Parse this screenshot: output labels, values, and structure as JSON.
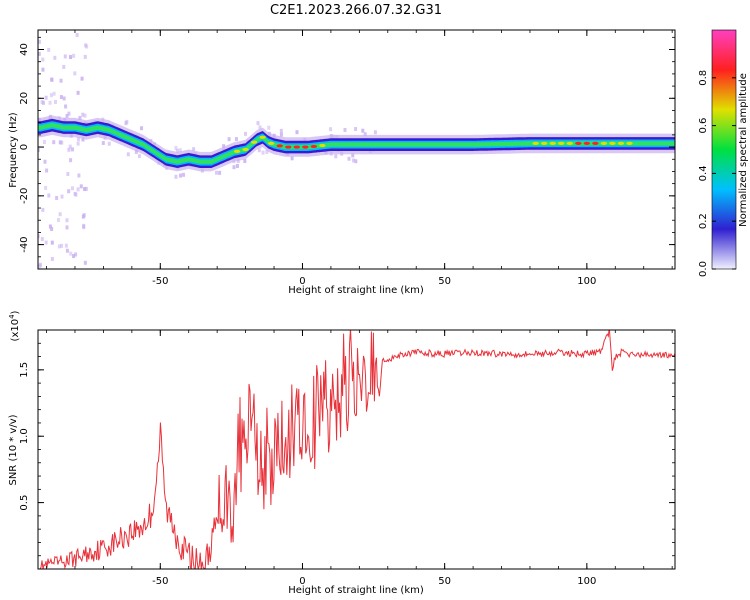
{
  "title": "C2E1.2023.266.07.32.G31",
  "colors": {
    "snr_line": "#e8323a",
    "track_core": "#e00020",
    "track_mid": "#30e060",
    "track_edge": "#3a1bd0",
    "track_halo": "#c9b0f0",
    "axis": "#000000",
    "background": "#ffffff"
  },
  "chart_data": [
    {
      "type": "heatmap",
      "xlabel": "Height of straight line (km)",
      "ylabel": "Frequency (Hz)",
      "xlim": [
        -93,
        131
      ],
      "ylim": [
        -50,
        48
      ],
      "x_ticks": [
        -50,
        0,
        50,
        100
      ],
      "y_ticks": [
        -40,
        -20,
        0,
        20,
        40
      ],
      "colorbar": {
        "label": "Normalized spectral amplitude",
        "range": [
          0.0,
          1.0
        ],
        "ticks": [
          "0.0",
          "0.2",
          "0.4",
          "0.6",
          "0.8"
        ],
        "stops": [
          "#f0f0ff",
          "#3020d0",
          "#00c0ff",
          "#00e040",
          "#e0e000",
          "#ff2020",
          "#ff40c0"
        ]
      },
      "ridge": {
        "x": [
          -92,
          -88,
          -84,
          -80,
          -76,
          -72,
          -68,
          -64,
          -60,
          -56,
          -52,
          -48,
          -44,
          -40,
          -36,
          -32,
          -28,
          -24,
          -20,
          -16,
          -14,
          -12,
          -10,
          -6,
          -2,
          2,
          6,
          10,
          20,
          40,
          60,
          80,
          100,
          120,
          131
        ],
        "y": [
          8,
          9,
          8,
          8,
          7,
          8,
          7,
          5,
          3,
          1,
          -2,
          -5,
          -6,
          -5,
          -6,
          -6,
          -4,
          -2,
          -1,
          3,
          4,
          2,
          1,
          0,
          0,
          0,
          0.5,
          1,
          1,
          1,
          1,
          1.5,
          1.5,
          1.5,
          1.5
        ],
        "amplitude": [
          0.5,
          0.6,
          0.55,
          0.5,
          0.55,
          0.5,
          0.55,
          0.55,
          0.55,
          0.5,
          0.45,
          0.35,
          0.4,
          0.45,
          0.45,
          0.5,
          0.55,
          0.6,
          0.7,
          0.65,
          0.6,
          0.7,
          0.75,
          0.85,
          0.9,
          0.9,
          0.7,
          0.55,
          0.5,
          0.45,
          0.45,
          0.6,
          0.8,
          0.55,
          0.5
        ]
      }
    },
    {
      "type": "line",
      "xlabel": "Height of straight line (km)",
      "ylabel": "SNR (10 * v/v)",
      "y_multiplier": "(x10^4)",
      "y_multiplier_base": "(x10",
      "y_multiplier_exp": "4",
      "y_multiplier_close": ")",
      "xlim": [
        -93,
        131
      ],
      "ylim": [
        0,
        1.8
      ],
      "x_ticks": [
        -50,
        0,
        50,
        100
      ],
      "y_ticks": [
        0.5,
        1.0,
        1.5
      ],
      "series": [
        {
          "x": [
            -93,
            -85,
            -80,
            -75,
            -70,
            -66,
            -62,
            -58,
            -55,
            -53,
            -51,
            -50,
            -48,
            -46,
            -44,
            -42,
            -40,
            -38,
            -36,
            -34,
            -32,
            -30,
            -28,
            -26,
            -24,
            -22,
            -20,
            -18,
            -16,
            -14,
            -12,
            -10,
            -8,
            -6,
            -4,
            -2,
            0,
            2,
            4,
            6,
            8,
            10,
            12,
            14,
            16,
            18,
            20,
            22,
            24,
            26,
            28,
            30,
            35,
            40,
            50,
            60,
            70,
            80,
            90,
            100,
            105,
            107,
            108,
            109,
            110,
            112,
            115,
            120,
            125,
            131
          ],
          "y": [
            0.02,
            0.05,
            0.08,
            0.12,
            0.16,
            0.2,
            0.26,
            0.3,
            0.35,
            0.42,
            0.75,
            1.02,
            0.45,
            0.35,
            0.25,
            0.15,
            0.1,
            0.05,
            0.02,
            0.05,
            0.2,
            0.35,
            0.55,
            0.6,
            0.7,
            1.1,
            0.75,
            1.35,
            0.8,
            0.95,
            0.85,
            0.9,
            1.0,
            0.95,
            1.05,
            1.1,
            1.12,
            1.15,
            1.2,
            1.25,
            1.3,
            1.35,
            1.38,
            1.42,
            1.45,
            1.48,
            1.5,
            1.52,
            1.54,
            1.6,
            1.56,
            1.58,
            1.62,
            1.63,
            1.62,
            1.63,
            1.62,
            1.62,
            1.63,
            1.62,
            1.64,
            1.75,
            1.8,
            1.5,
            1.6,
            1.63,
            1.62,
            1.61,
            1.62,
            1.6
          ]
        }
      ]
    }
  ]
}
